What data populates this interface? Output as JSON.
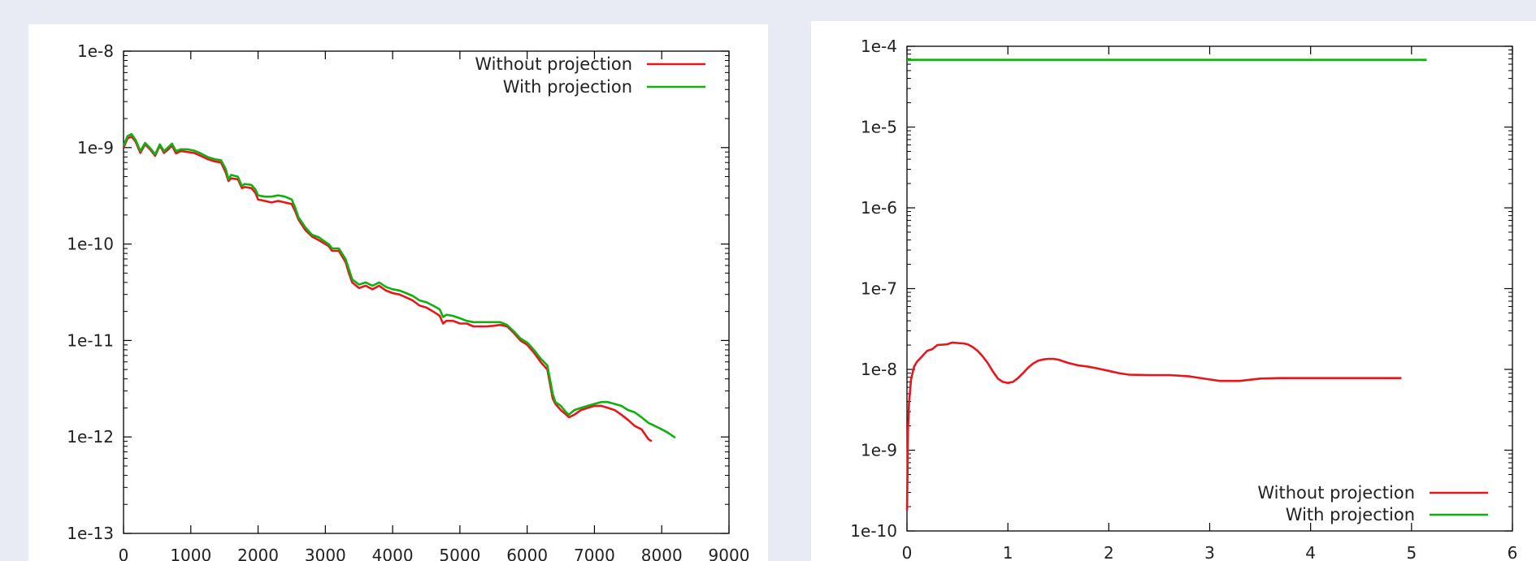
{
  "chart_data": [
    {
      "type": "line",
      "yscale": "log",
      "xlim": [
        0,
        9000
      ],
      "ylim": [
        1e-13,
        1e-08
      ],
      "xticks": [
        0,
        1000,
        2000,
        3000,
        4000,
        5000,
        6000,
        7000,
        8000,
        9000
      ],
      "xtick_labels": [
        "0",
        "1000",
        "2000",
        "3000",
        "4000",
        "5000",
        "6000",
        "7000",
        "8000",
        "9000"
      ],
      "yticks": [
        1e-13,
        1e-12,
        1e-11,
        1e-10,
        1e-09,
        1e-08
      ],
      "ytick_labels": [
        "1e-13",
        "1e-12",
        "1e-11",
        "1e-10",
        "1e-9",
        "1e-8"
      ],
      "grid": false,
      "legend": "top-right",
      "series": [
        {
          "name": "Without projection",
          "color": "#e8161b",
          "x": [
            0,
            60,
            120,
            180,
            250,
            320,
            400,
            470,
            540,
            600,
            660,
            720,
            780,
            850,
            950,
            1050,
            1150,
            1250,
            1350,
            1450,
            1520,
            1560,
            1600,
            1700,
            1760,
            1800,
            1900,
            1960,
            2000,
            2100,
            2200,
            2300,
            2400,
            2500,
            2550,
            2600,
            2700,
            2800,
            2900,
            3000,
            3050,
            3100,
            3200,
            3300,
            3350,
            3400,
            3500,
            3600,
            3700,
            3800,
            3900,
            4000,
            4100,
            4200,
            4300,
            4400,
            4500,
            4600,
            4700,
            4750,
            4800,
            4900,
            5000,
            5100,
            5200,
            5300,
            5400,
            5500,
            5600,
            5700,
            5800,
            5900,
            6000,
            6100,
            6200,
            6300,
            6380,
            6420,
            6500,
            6580,
            6620,
            6700,
            6800,
            6900,
            7000,
            7100,
            7200,
            7300,
            7400,
            7500,
            7600,
            7700,
            7800,
            7850
          ],
          "y": [
            1e-09,
            1.25e-09,
            1.3e-09,
            1.15e-09,
            8.8e-10,
            1.08e-09,
            9.5e-10,
            8.2e-10,
            1.05e-09,
            8.8e-10,
            9.5e-10,
            1.05e-09,
            8.7e-10,
            9.2e-10,
            9e-10,
            8.8e-10,
            8.2e-10,
            7.6e-10,
            7.2e-10,
            7e-10,
            5.5e-10,
            4.5e-10,
            4.8e-10,
            4.7e-10,
            3.8e-10,
            3.9e-10,
            3.8e-10,
            3.4e-10,
            2.9e-10,
            2.8e-10,
            2.7e-10,
            2.8e-10,
            2.7e-10,
            2.6e-10,
            2.2e-10,
            1.8e-10,
            1.4e-10,
            1.2e-10,
            1.1e-10,
            1e-10,
            9.5e-11,
            8.5e-11,
            8.5e-11,
            6.5e-11,
            5e-11,
            4e-11,
            3.5e-11,
            3.7e-11,
            3.4e-11,
            3.7e-11,
            3.3e-11,
            3.1e-11,
            3e-11,
            2.8e-11,
            2.6e-11,
            2.3e-11,
            2.2e-11,
            2e-11,
            1.8e-11,
            1.5e-11,
            1.6e-11,
            1.6e-11,
            1.5e-11,
            1.5e-11,
            1.4e-11,
            1.4e-11,
            1.4e-11,
            1.42e-11,
            1.45e-11,
            1.4e-11,
            1.2e-11,
            1e-11,
            9e-12,
            7.5e-12,
            6e-12,
            5e-12,
            2.5e-12,
            2.2e-12,
            1.9e-12,
            1.7e-12,
            1.6e-12,
            1.7e-12,
            1.9e-12,
            2e-12,
            2.1e-12,
            2.1e-12,
            2e-12,
            1.9e-12,
            1.7e-12,
            1.5e-12,
            1.3e-12,
            1.2e-12,
            9.5e-13,
            9e-13
          ]
        },
        {
          "name": "With projection",
          "color": "#10b010",
          "x": [
            0,
            60,
            120,
            180,
            250,
            320,
            400,
            470,
            540,
            600,
            660,
            720,
            780,
            850,
            950,
            1050,
            1150,
            1250,
            1350,
            1450,
            1520,
            1560,
            1600,
            1700,
            1760,
            1800,
            1900,
            1960,
            2000,
            2100,
            2200,
            2300,
            2400,
            2500,
            2550,
            2600,
            2700,
            2800,
            2900,
            3000,
            3050,
            3100,
            3200,
            3300,
            3350,
            3400,
            3500,
            3600,
            3700,
            3800,
            3900,
            4000,
            4100,
            4200,
            4300,
            4400,
            4500,
            4600,
            4700,
            4750,
            4800,
            4900,
            5000,
            5100,
            5200,
            5300,
            5400,
            5500,
            5600,
            5700,
            5800,
            5900,
            6000,
            6100,
            6200,
            6300,
            6380,
            6420,
            6500,
            6580,
            6620,
            6700,
            6800,
            6900,
            7000,
            7100,
            7200,
            7300,
            7400,
            7500,
            7600,
            7700,
            7800,
            7900,
            8000,
            8100,
            8200
          ],
          "y": [
            1.05e-09,
            1.32e-09,
            1.38e-09,
            1.2e-09,
            9.2e-10,
            1.12e-09,
            9.8e-10,
            8.5e-10,
            1.08e-09,
            9.2e-10,
            1e-09,
            1.1e-09,
            9.2e-10,
            9.6e-10,
            9.6e-10,
            9.3e-10,
            8.7e-10,
            8e-10,
            7.6e-10,
            7.4e-10,
            6e-10,
            4.7e-10,
            5.2e-10,
            5e-10,
            4e-10,
            4.2e-10,
            4.1e-10,
            3.7e-10,
            3.2e-10,
            3.1e-10,
            3.1e-10,
            3.2e-10,
            3.1e-10,
            2.9e-10,
            2.4e-10,
            1.9e-10,
            1.5e-10,
            1.25e-10,
            1.18e-10,
            1.05e-10,
            1e-10,
            9e-11,
            9e-11,
            7e-11,
            5.5e-11,
            4.3e-11,
            3.8e-11,
            4e-11,
            3.7e-11,
            4e-11,
            3.6e-11,
            3.4e-11,
            3.3e-11,
            3.1e-11,
            2.9e-11,
            2.6e-11,
            2.5e-11,
            2.3e-11,
            2.1e-11,
            1.75e-11,
            1.85e-11,
            1.8e-11,
            1.7e-11,
            1.6e-11,
            1.55e-11,
            1.55e-11,
            1.55e-11,
            1.55e-11,
            1.55e-11,
            1.45e-11,
            1.25e-11,
            1.05e-11,
            9.5e-12,
            8e-12,
            6.5e-12,
            5.5e-12,
            2.8e-12,
            2.3e-12,
            2.1e-12,
            1.8e-12,
            1.7e-12,
            1.9e-12,
            2e-12,
            2.1e-12,
            2.2e-12,
            2.3e-12,
            2.3e-12,
            2.2e-12,
            2.1e-12,
            1.9e-12,
            1.8e-12,
            1.6e-12,
            1.4e-12,
            1.3e-12,
            1.2e-12,
            1.1e-12,
            9.8e-13
          ]
        }
      ]
    },
    {
      "type": "line",
      "yscale": "log",
      "xlim": [
        0,
        6
      ],
      "ylim": [
        1e-10,
        0.0001
      ],
      "xticks": [
        0,
        1,
        2,
        3,
        4,
        5,
        6
      ],
      "xtick_labels": [
        "0",
        "1",
        "2",
        "3",
        "4",
        "5",
        "6"
      ],
      "yticks": [
        1e-10,
        1e-09,
        1e-08,
        1e-07,
        1e-06,
        1e-05,
        0.0001
      ],
      "ytick_labels": [
        "1e-10",
        "1e-9",
        "1e-8",
        "1e-7",
        "1e-6",
        "1e-5",
        "1e-4"
      ],
      "grid": false,
      "legend": "bottom-right",
      "series": [
        {
          "name": "Without projection",
          "color": "#e8161b",
          "x": [
            0.0,
            0.005,
            0.01,
            0.02,
            0.04,
            0.07,
            0.1,
            0.15,
            0.2,
            0.25,
            0.3,
            0.35,
            0.4,
            0.45,
            0.5,
            0.55,
            0.6,
            0.65,
            0.7,
            0.75,
            0.8,
            0.85,
            0.9,
            0.95,
            1.0,
            1.05,
            1.1,
            1.15,
            1.2,
            1.25,
            1.3,
            1.35,
            1.4,
            1.45,
            1.5,
            1.6,
            1.7,
            1.8,
            1.9,
            2.0,
            2.1,
            2.2,
            2.4,
            2.6,
            2.8,
            3.0,
            3.1,
            3.2,
            3.3,
            3.5,
            3.7,
            4.0,
            4.3,
            4.6,
            4.9
          ],
          "y": [
            1.8e-10,
            4.5e-10,
            1.7e-09,
            3.8e-09,
            7.5e-09,
            1.08e-08,
            1.25e-08,
            1.45e-08,
            1.7e-08,
            1.78e-08,
            2e-08,
            2.02e-08,
            2.05e-08,
            2.15e-08,
            2.12e-08,
            2.1e-08,
            2.05e-08,
            1.9e-08,
            1.7e-08,
            1.45e-08,
            1.2e-08,
            9.5e-09,
            7.7e-09,
            7e-09,
            6.8e-09,
            7e-09,
            7.8e-09,
            9e-09,
            1.05e-08,
            1.18e-08,
            1.28e-08,
            1.33e-08,
            1.35e-08,
            1.35e-08,
            1.32e-08,
            1.2e-08,
            1.12e-08,
            1.08e-08,
            1.02e-08,
            9.6e-09,
            9e-09,
            8.6e-09,
            8.5e-09,
            8.5e-09,
            8.2e-09,
            7.5e-09,
            7.2e-09,
            7.2e-09,
            7.2e-09,
            7.7e-09,
            7.8e-09,
            7.8e-09,
            7.8e-09,
            7.8e-09,
            7.8e-09
          ]
        },
        {
          "name": "With projection",
          "color": "#10b010",
          "x": [
            0.0,
            5.15
          ],
          "y": [
            6.8e-05,
            6.8e-05
          ]
        }
      ]
    }
  ]
}
